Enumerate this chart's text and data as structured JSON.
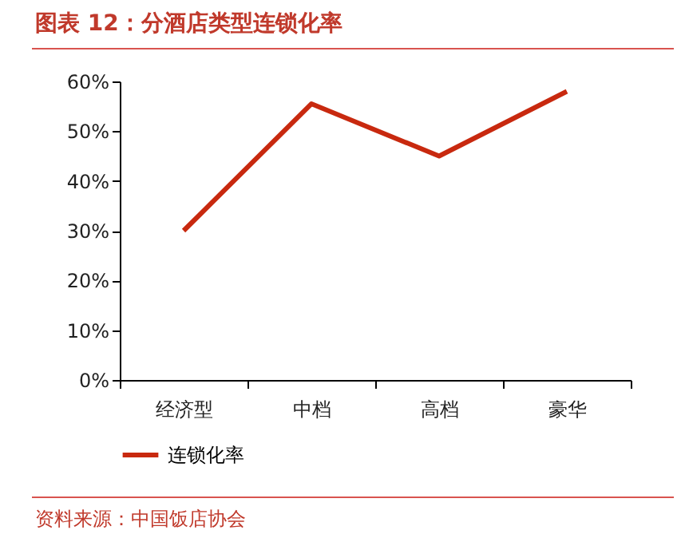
{
  "chart_data": {
    "type": "line",
    "title": "图表 12：分酒店类型连锁化率",
    "categories": [
      "经济型",
      "中档",
      "高档",
      "豪华"
    ],
    "series": [
      {
        "name": "连锁化率",
        "color": "#c8290f",
        "values": [
          30,
          55.5,
          45,
          58
        ]
      }
    ],
    "ylim": [
      0,
      60
    ],
    "yticks": [
      {
        "value": 0,
        "label": "0%"
      },
      {
        "value": 10,
        "label": "10%"
      },
      {
        "value": 20,
        "label": "20%"
      },
      {
        "value": 30,
        "label": "30%"
      },
      {
        "value": 40,
        "label": "40%"
      },
      {
        "value": 50,
        "label": "50%"
      },
      {
        "value": 60,
        "label": "60%"
      }
    ],
    "grid": false,
    "legend": "bottom",
    "marker": "none",
    "line_style": "solid",
    "annotations": [
      "资料来源：中国饭店协会"
    ]
  }
}
